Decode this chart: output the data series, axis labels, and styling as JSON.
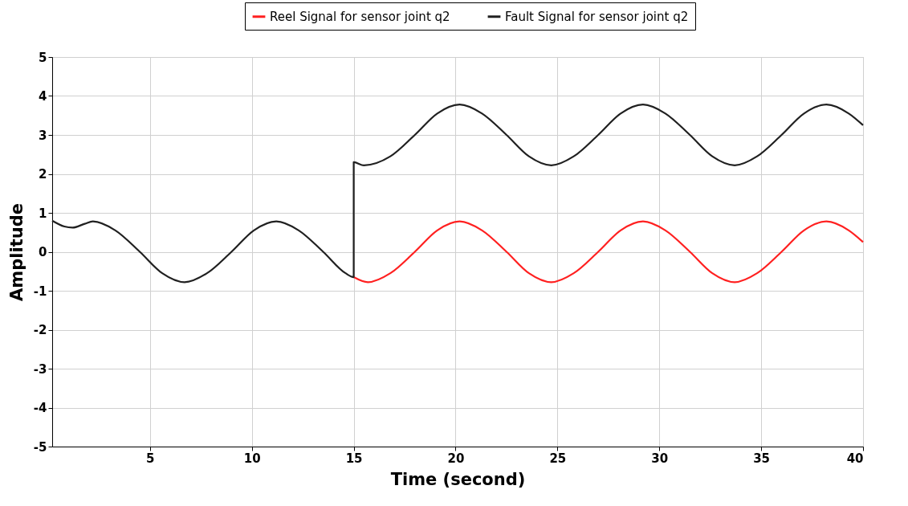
{
  "chart_data": {
    "type": "line",
    "xlabel": "Time (second)",
    "ylabel": "Amplitude",
    "xlim": [
      0.2,
      40
    ],
    "ylim": [
      -5,
      5
    ],
    "xticks": [
      5,
      10,
      15,
      20,
      25,
      30,
      35,
      40
    ],
    "yticks": [
      -5,
      -4,
      -3,
      -2,
      -1,
      0,
      1,
      2,
      3,
      4,
      5
    ],
    "grid": true,
    "legend": "top right",
    "marker": "none",
    "line_style": "solid",
    "series": [
      {
        "name": "Reel Signal for sensor joint q2",
        "color": "#ff2020",
        "x": [
          15.0,
          15.7,
          16.8,
          18.0,
          19.1,
          20.2,
          21.3,
          22.5,
          23.6,
          24.7,
          25.8,
          27.0,
          28.1,
          29.2,
          30.3,
          31.5,
          32.6,
          33.7,
          34.8,
          36.0,
          37.1,
          38.2,
          39.3,
          40
        ],
        "values": [
          -0.65,
          -0.78,
          -0.55,
          0,
          0.55,
          0.78,
          0.55,
          0,
          -0.55,
          -0.78,
          -0.55,
          0,
          0.55,
          0.78,
          0.55,
          0,
          -0.55,
          -0.78,
          -0.55,
          0,
          0.55,
          0.78,
          0.55,
          0.25
        ]
      },
      {
        "name": "Fault Signal for sensor joint q2",
        "color": "#202020",
        "x": [
          0.2,
          0.8,
          1.2,
          1.8,
          2.2,
          3.3,
          4.5,
          5.6,
          6.7,
          7.8,
          9.0,
          10.1,
          11.2,
          12.3,
          13.5,
          14.6,
          15.0,
          15.0,
          15.5,
          16.8,
          18.0,
          19.1,
          20.2,
          21.3,
          22.5,
          23.6,
          24.7,
          25.8,
          27.0,
          28.1,
          29.2,
          30.3,
          31.5,
          32.6,
          33.7,
          34.8,
          36.0,
          37.1,
          38.2,
          39.3,
          40
        ],
        "values": [
          0.8,
          0.65,
          0.62,
          0.72,
          0.78,
          0.55,
          0,
          -0.55,
          -0.78,
          -0.55,
          0,
          0.55,
          0.78,
          0.55,
          0,
          -0.55,
          -0.65,
          2.3,
          2.22,
          2.45,
          3,
          3.55,
          3.78,
          3.55,
          3,
          2.45,
          2.22,
          2.45,
          3,
          3.55,
          3.78,
          3.55,
          3,
          2.45,
          2.22,
          2.45,
          3,
          3.55,
          3.78,
          3.55,
          3.25
        ]
      }
    ]
  }
}
